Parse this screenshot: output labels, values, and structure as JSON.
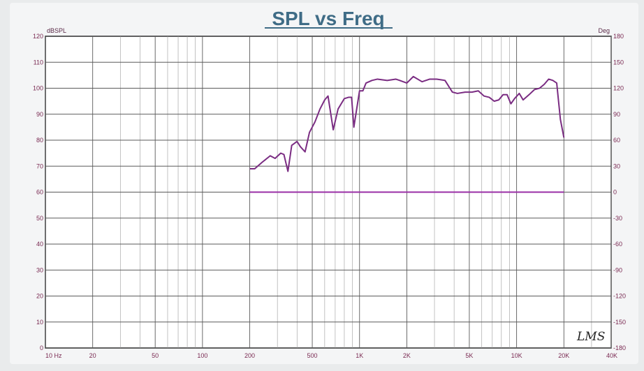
{
  "chart_data": {
    "type": "line",
    "title": "SPL vs Freq",
    "ylabel": "dBSPL",
    "y2label": "Deg",
    "xscale": "log",
    "xlim": [
      10,
      40000
    ],
    "ylim": [
      0,
      120
    ],
    "y2lim": [
      -180,
      180
    ],
    "grid": true,
    "x_ticks": [
      {
        "value": 10,
        "label": "10  Hz"
      },
      {
        "value": 20,
        "label": "20"
      },
      {
        "value": 50,
        "label": "50"
      },
      {
        "value": 100,
        "label": "100"
      },
      {
        "value": 200,
        "label": "200"
      },
      {
        "value": 500,
        "label": "500"
      },
      {
        "value": 1000,
        "label": "1K"
      },
      {
        "value": 2000,
        "label": "2K"
      },
      {
        "value": 5000,
        "label": "5K"
      },
      {
        "value": 10000,
        "label": "10K"
      },
      {
        "value": 20000,
        "label": "20K"
      },
      {
        "value": 40000,
        "label": "40K"
      }
    ],
    "y_ticks": [
      "0",
      "10",
      "20",
      "30",
      "40",
      "50",
      "60",
      "70",
      "80",
      "90",
      "100",
      "110",
      "120"
    ],
    "y2_ticks": [
      "-180",
      "-150",
      "-120",
      "-90",
      "-60",
      "-30",
      "0",
      "30",
      "60",
      "90",
      "120",
      "150",
      "180"
    ],
    "series": [
      {
        "role": "spl",
        "color": "#7a2c82",
        "x": [
          200,
          215,
          240,
          270,
          290,
          315,
          330,
          350,
          370,
          400,
          420,
          450,
          480,
          520,
          560,
          600,
          630,
          680,
          730,
          800,
          850,
          890,
          920,
          1000,
          1050,
          1100,
          1200,
          1300,
          1500,
          1700,
          1800,
          2000,
          2200,
          2500,
          2800,
          3100,
          3500,
          3900,
          4200,
          4700,
          5200,
          5700,
          6200,
          6700,
          7200,
          7700,
          8200,
          8700,
          9200,
          9700,
          10400,
          11000,
          12000,
          13000,
          14000,
          15000,
          16000,
          17000,
          18000,
          19000,
          20000
        ],
        "y": [
          69,
          69,
          71.5,
          74,
          73,
          75,
          74.5,
          68,
          78,
          79.5,
          77.5,
          75.5,
          83,
          87,
          92,
          95.5,
          97,
          84,
          92,
          96,
          96.5,
          96.5,
          85,
          99,
          99,
          102,
          103,
          103.5,
          103,
          103.5,
          103,
          102,
          104.5,
          102.5,
          103.5,
          103.5,
          103,
          98.5,
          98,
          98.5,
          98.5,
          99,
          97,
          96.5,
          95,
          95.5,
          97.5,
          97.5,
          94,
          96,
          98,
          95.5,
          97.5,
          99.5,
          100,
          101.5,
          103.5,
          103,
          102,
          88,
          81
        ]
      },
      {
        "role": "phase",
        "color": "#9a2ea6",
        "x": [
          200,
          20000
        ],
        "y": [
          60,
          60
        ]
      }
    ]
  },
  "logo_text": "LMS"
}
